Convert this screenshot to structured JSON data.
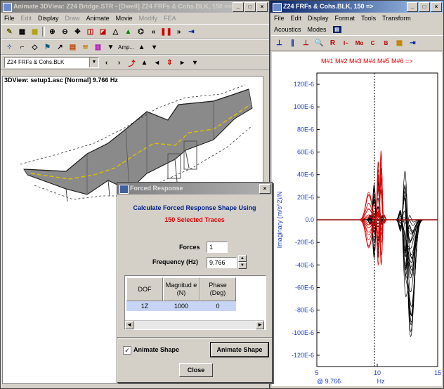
{
  "left_window": {
    "title": "Animate 3DView: Z24 Bridge.STR - [Dwell] Z24 FRFs & Cohs.BLK, 150 =>",
    "menus": [
      "File",
      "Edit",
      "Display",
      "Draw",
      "Animate",
      "Movie",
      "Modify",
      "FEA"
    ],
    "disabled_menus": [
      "Edit",
      "Draw",
      "Modify",
      "FEA"
    ],
    "amp_label": "Amp...",
    "data_combo": "Z24 FRFs & Cohs.BLK",
    "view_label": "3DView: setup1.asc [Normal] 9.766 Hz"
  },
  "right_window": {
    "title": "Z24 FRFs & Cohs.BLK, 150 =>",
    "menus": [
      "File",
      "Edit",
      "Display",
      "Format",
      "Tools",
      "Transform"
    ],
    "menus2": [
      "Acoustics",
      "Modes"
    ],
    "markers_label": "M#1 M#2 M#3 M#4 M#5 M#6 =>"
  },
  "chart_data": {
    "type": "line",
    "ylabel": "Imaginary (m/s^2)/N",
    "xlabel": "Hz",
    "cursor_readout": "@ 9.766",
    "x_ticks": [
      "5",
      "10",
      "15"
    ],
    "y_ticks": [
      "120E-6",
      "100E-6",
      "80E-6",
      "60E-6",
      "40E-6",
      "20E-6",
      "0.0",
      "-20E-6",
      "-40E-6",
      "-60E-6",
      "-80E-6",
      "-100E-6",
      "-120E-6"
    ],
    "xlim": [
      5,
      15
    ],
    "ylim": [
      -0.00013,
      0.00013
    ],
    "cursor_x": 9.766,
    "series": [
      {
        "color": "#000000",
        "peaks": [
          {
            "x": 9.2,
            "y": 4.5e-05
          },
          {
            "x": 10.2,
            "y": -6e-05
          },
          {
            "x": 12.4,
            "y": 5e-05
          },
          {
            "x": 12.8,
            "y": -0.000125
          }
        ]
      },
      {
        "color": "#e00000",
        "peaks": [
          {
            "x": 9.5,
            "y": 2.5e-05
          },
          {
            "x": 10.3,
            "y": 0.00011
          },
          {
            "x": 10.1,
            "y": -7.5e-05
          }
        ]
      }
    ]
  },
  "dialog": {
    "title": "Forced Response",
    "heading": "Calculate Forced Response Shape Using",
    "subheading": "150 Selected Traces",
    "forces_label": "Forces",
    "forces_value": "1",
    "frequency_label": "Frequency (Hz)",
    "frequency_value": "9.766",
    "table": {
      "col_dof": "DOF",
      "col_mag": "Magnitud e (N)",
      "col_phase": "Phase (Deg)",
      "row_dof": "1Z",
      "row_mag": "1000",
      "row_phase": "0"
    },
    "animate_checkbox_label": "Animate Shape",
    "animate_button": "Animate Shape",
    "close_button": "Close"
  },
  "colors": {
    "accent": "#0a246a",
    "red_trace": "#e00000",
    "axis_blue": "#2040c0",
    "marker_red": "#e00000"
  }
}
